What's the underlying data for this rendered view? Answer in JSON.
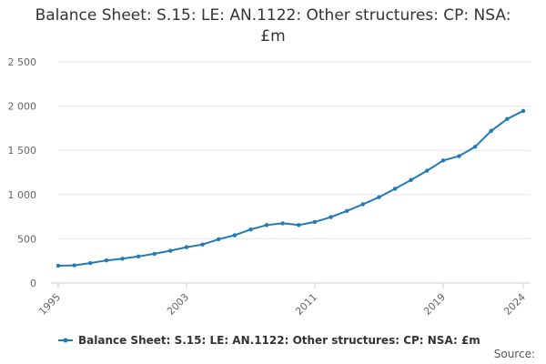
{
  "title": "Balance Sheet: S.15: LE: AN.1122: Other structures: CP: NSA: £m",
  "source_label": "Source:",
  "chart_data": {
    "type": "line",
    "title": "Balance Sheet: S.15: LE: AN.1122: Other structures: CP: NSA: £m",
    "xlabel": "",
    "ylabel": "",
    "xlim": [
      1995,
      2024
    ],
    "ylim": [
      0,
      2500
    ],
    "yticks": [
      0,
      500,
      1000,
      1500,
      2000,
      2500
    ],
    "ytick_labels": [
      "0",
      "500",
      "1 000",
      "1 500",
      "2 000",
      "2 500"
    ],
    "xticks": [
      1995,
      2003,
      2011,
      2019,
      2024
    ],
    "xtick_labels": [
      "1995",
      "2003",
      "2011",
      "2019",
      "2024"
    ],
    "legend_position": "bottom",
    "series": [
      {
        "name": "Balance Sheet: S.15: LE: AN.1122: Other structures: CP: NSA: £m",
        "color": "#1f7ab6",
        "x": [
          1995,
          1996,
          1997,
          1998,
          1999,
          2000,
          2001,
          2002,
          2003,
          2004,
          2005,
          2006,
          2007,
          2008,
          2009,
          2010,
          2011,
          2012,
          2013,
          2014,
          2015,
          2016,
          2017,
          2018,
          2019,
          2020,
          2021,
          2022,
          2023,
          2024
        ],
        "values": [
          195,
          200,
          225,
          255,
          275,
          300,
          330,
          365,
          405,
          435,
          495,
          540,
          605,
          655,
          675,
          655,
          690,
          745,
          815,
          890,
          970,
          1065,
          1165,
          1270,
          1385,
          1435,
          1540,
          1720,
          1855,
          1945
        ]
      }
    ]
  }
}
